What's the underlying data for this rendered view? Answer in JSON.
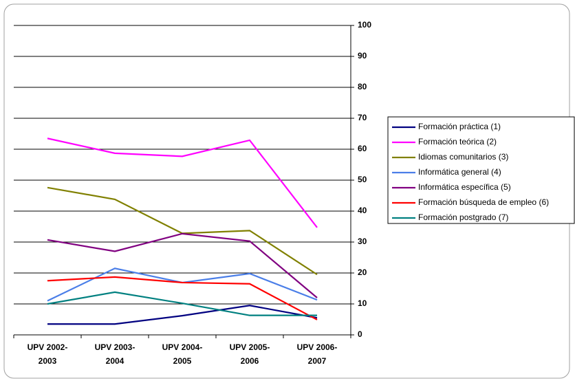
{
  "chart_data": {
    "type": "line",
    "categories": [
      "UPV 2002-2003",
      "UPV 2003-2004",
      "UPV 2004-2005",
      "UPV 2005-2006",
      "UPV 2006-2007"
    ],
    "series": [
      {
        "name": "Formación práctica (1)",
        "color": "#000080",
        "values": [
          3.5,
          3.5,
          6.2,
          9.5,
          5.5
        ]
      },
      {
        "name": "Formación teórica (2)",
        "color": "#ff00ff",
        "values": [
          63.5,
          58.7,
          57.7,
          62.9,
          34.7
        ]
      },
      {
        "name": "Idiomas comunitarios (3)",
        "color": "#808000",
        "values": [
          47.6,
          43.8,
          32.8,
          33.7,
          19.5
        ]
      },
      {
        "name": "Informática general (4)",
        "color": "#4a7ee8",
        "values": [
          11,
          21.5,
          16.9,
          19.8,
          11.3
        ]
      },
      {
        "name": "Informática específica (5)",
        "color": "#800080",
        "values": [
          30.7,
          27,
          32.7,
          30.3,
          12
        ]
      },
      {
        "name": "Formación búsqueda de empleo (6)",
        "color": "#ff0000",
        "values": [
          17.5,
          18.7,
          16.9,
          16.5,
          4.9
        ]
      },
      {
        "name": "Formación postgrado (7)",
        "color": "#008080",
        "values": [
          10,
          13.8,
          10.2,
          6.3,
          6.3
        ]
      }
    ],
    "ylim": [
      0,
      100
    ],
    "yticks": [
      0,
      10,
      20,
      30,
      40,
      50,
      60,
      70,
      80,
      90,
      100
    ],
    "y_axis_side": "right",
    "grid": true,
    "legend": "right"
  }
}
